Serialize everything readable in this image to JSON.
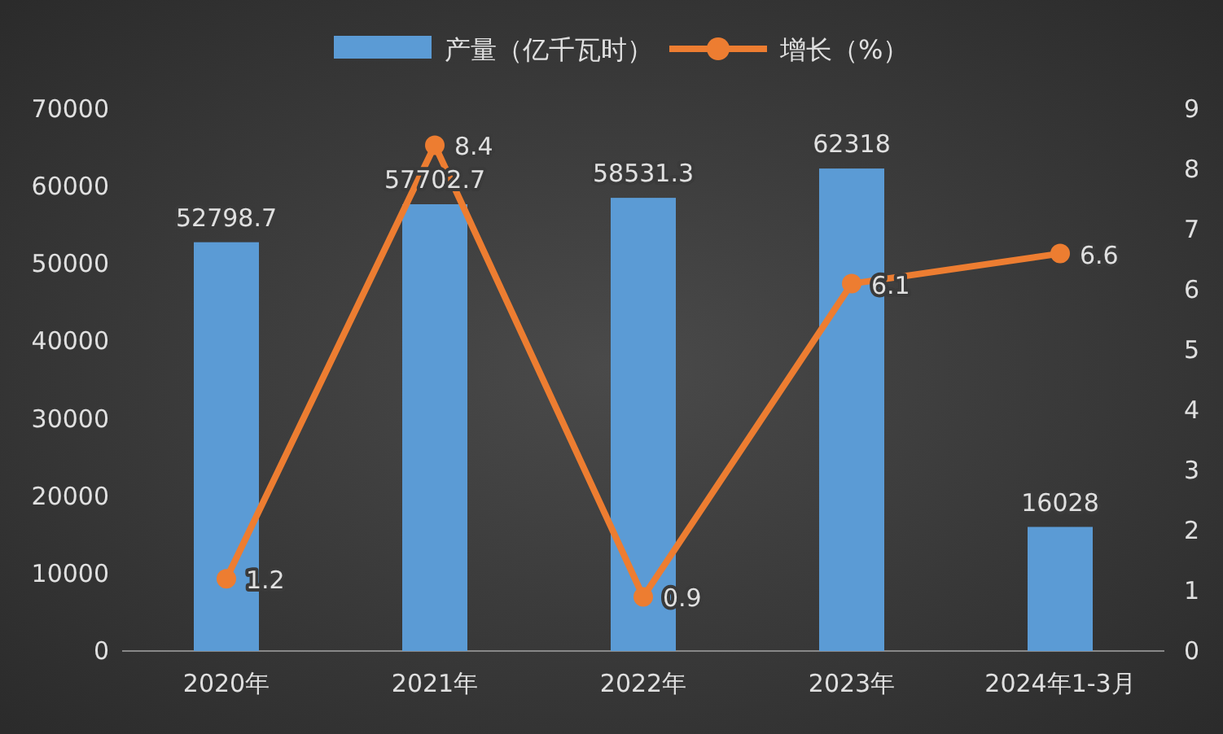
{
  "chart_data": {
    "type": "bar",
    "categories": [
      "2020年",
      "2021年",
      "2022年",
      "2023年",
      "2024年1-3月"
    ],
    "series": [
      {
        "name": "产量（亿千瓦时）",
        "color": "#5b9bd5",
        "values": [
          52798.7,
          57702.7,
          58531.3,
          62318,
          16028
        ]
      },
      {
        "name": "增长（%）",
        "type": "line",
        "axis": "y2",
        "color": "#ed7d31",
        "marker": "circle",
        "values": [
          1.2,
          8.4,
          0.9,
          6.1,
          6.6
        ]
      }
    ],
    "ylim": [
      0,
      70000
    ],
    "yticks": [
      0,
      10000,
      20000,
      30000,
      40000,
      50000,
      60000,
      70000
    ],
    "y2lim": [
      0,
      9
    ],
    "y2ticks": [
      0,
      1,
      2,
      3,
      4,
      5,
      6,
      7,
      8,
      9
    ],
    "data_labels": true,
    "legend": "top",
    "grid": false
  }
}
